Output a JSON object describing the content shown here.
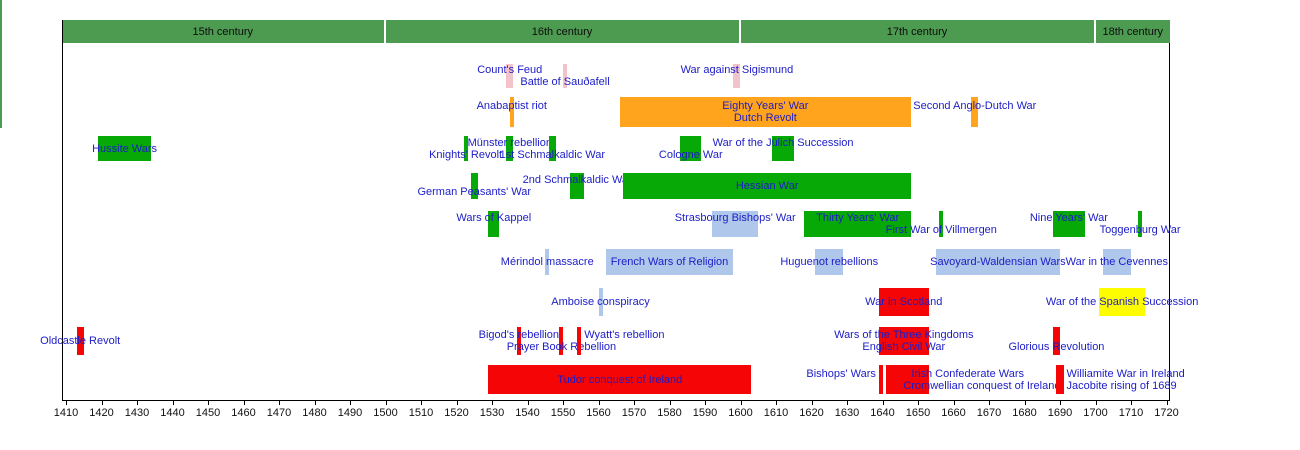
{
  "chart_data": {
    "type": "bar",
    "variant": "horizontal-interval-timeline",
    "x_axis": {
      "min": 1410,
      "max": 1720,
      "tick_step": 10,
      "ticks": [
        "1410",
        "1420",
        "1430",
        "1440",
        "1450",
        "1460",
        "1470",
        "1480",
        "1490",
        "1500",
        "1510",
        "1520",
        "1530",
        "1540",
        "1550",
        "1560",
        "1570",
        "1580",
        "1590",
        "1600",
        "1610",
        "1620",
        "1630",
        "1640",
        "1650",
        "1660",
        "1670",
        "1680",
        "1690",
        "1700",
        "1710",
        "1720"
      ]
    },
    "centuries": [
      {
        "label": "15th century",
        "start": 1410,
        "end": 1500
      },
      {
        "label": "16th century",
        "start": 1500,
        "end": 1600
      },
      {
        "label": "17th century",
        "start": 1600,
        "end": 1700
      },
      {
        "label": "18th century",
        "start": 1700,
        "end": 1720
      }
    ],
    "colors": {
      "green": "#07a907",
      "orange": "#ffa41c",
      "red": "#f50505",
      "lightblue": "#aec7ea",
      "pink": "#f2c3cb",
      "yellow": "#fdfd00",
      "header_green": "#4d9a51",
      "label_text": "#1c1cc8",
      "axis_text": "#111111",
      "frame": "#000000",
      "background": "#ffffff"
    },
    "rows": [
      {
        "events": [
          {
            "name": "Count's Feud",
            "start": 1534,
            "end": 1536,
            "color": "pink",
            "line": 1,
            "mode": "center"
          },
          {
            "name": "Battle of Sauðafell",
            "start": 1550,
            "end": 1551,
            "color": "pink",
            "line": 2,
            "mode": "center"
          },
          {
            "name": "War against Sigismund",
            "start": 1598,
            "end": 1600,
            "color": "pink",
            "line": 1,
            "mode": "center"
          }
        ]
      },
      {
        "events": [
          {
            "name": "Anabaptist riot",
            "start": 1535,
            "end": 1536,
            "color": "orange",
            "line": 1,
            "mode": "center"
          },
          {
            "name": "Eighty Years' War",
            "label2": {
              "text": "Dutch Revolt"
            },
            "start": 1566,
            "end": 1648,
            "color": "orange",
            "line": 1,
            "mode": "center"
          },
          {
            "name": "Second Anglo-Dutch War",
            "start": 1665,
            "end": 1667,
            "color": "orange",
            "line": 1,
            "mode": "center"
          }
        ]
      },
      {
        "events": [
          {
            "name": "Hussite Wars",
            "start": 1419,
            "end": 1434,
            "color": "green",
            "line": 0,
            "mode": "center"
          },
          {
            "name": "Knights' Revolt",
            "start": 1522,
            "end": 1523,
            "color": "green",
            "line": 2,
            "mode": "center"
          },
          {
            "name": "Münster rebellion",
            "start": 1534,
            "end": 1536,
            "color": "green",
            "line": 1,
            "mode": "center"
          },
          {
            "name": "1st Schmalkaldic War",
            "start": 1546,
            "end": 1548,
            "color": "green",
            "line": 2,
            "mode": "center"
          },
          {
            "name": "Cologne War",
            "start": 1583,
            "end": 1589,
            "color": "green",
            "line": 2,
            "mode": "center"
          },
          {
            "name": "War of the Jülich Succession",
            "start": 1609,
            "end": 1615,
            "color": "green",
            "line": 1,
            "mode": "center"
          }
        ]
      },
      {
        "events": [
          {
            "name": "German Peasants' War",
            "start": 1524,
            "end": 1526,
            "color": "green",
            "line": 2,
            "mode": "center"
          },
          {
            "name": "2nd Schmalkaldic War",
            "start": 1552,
            "end": 1556,
            "color": "green",
            "line": 1,
            "mode": "center"
          },
          {
            "name": "Hessian War",
            "start": 1567,
            "end": 1648,
            "color": "green",
            "line": 0,
            "mode": "center"
          }
        ]
      },
      {
        "events": [
          {
            "name": "Wars of Kappel",
            "start": 1529,
            "end": 1532,
            "color": "green",
            "line": 1,
            "mode": "center"
          },
          {
            "name": "Strasbourg Bishops' War",
            "start": 1592,
            "end": 1605,
            "color": "lightblue",
            "line": 1,
            "mode": "center"
          },
          {
            "name": "Thirty Years' War",
            "start": 1618,
            "end": 1648,
            "color": "green",
            "line": 1,
            "mode": "center"
          },
          {
            "name": "First War of Villmergen",
            "start": 1656,
            "end": 1657,
            "color": "green",
            "line": 2,
            "mode": "center"
          },
          {
            "name": "Nine Years' War",
            "start": 1688,
            "end": 1697,
            "color": "green",
            "line": 1,
            "mode": "center"
          },
          {
            "name": "Toggenburg War",
            "start": 1712,
            "end": 1713,
            "color": "green",
            "line": 2,
            "mode": "center"
          }
        ]
      },
      {
        "events": [
          {
            "name": "Mérindol massacre",
            "start": 1545,
            "end": 1546,
            "color": "lightblue",
            "line": 0,
            "mode": "center"
          },
          {
            "name": "French Wars of Religion",
            "start": 1562,
            "end": 1598,
            "color": "lightblue",
            "line": 0,
            "mode": "center"
          },
          {
            "name": "Huguenot rebellions",
            "start": 1621,
            "end": 1629,
            "color": "lightblue",
            "line": 0,
            "mode": "center"
          },
          {
            "name": "Savoyard-Waldensian Wars",
            "start": 1655,
            "end": 1690,
            "color": "lightblue",
            "line": 0,
            "mode": "center"
          },
          {
            "name": "War in the Cevennes",
            "start": 1702,
            "end": 1710,
            "color": "lightblue",
            "line": 0,
            "mode": "center"
          }
        ]
      },
      {
        "events": [
          {
            "name": "Amboise conspiracy",
            "start": 1560,
            "end": 1561,
            "color": "lightblue",
            "line": 0,
            "mode": "center"
          },
          {
            "name": "War in Scotland",
            "start": 1639,
            "end": 1653,
            "color": "red",
            "line": 0,
            "mode": "center"
          },
          {
            "name": "War of the Spanish Succession",
            "start": 1701,
            "end": 1714,
            "color": "yellow",
            "line": 0,
            "mode": "center"
          }
        ]
      },
      {
        "events": [
          {
            "name": "Oldcastle Revolt",
            "start": 1413,
            "end": 1415,
            "color": "red",
            "line": 0,
            "mode": "center"
          },
          {
            "name": "Bigod's rebellion",
            "start": 1537,
            "end": 1538,
            "color": "red",
            "line": 1,
            "mode": "center"
          },
          {
            "name": "Prayer Book Rebellion",
            "start": 1549,
            "end": 1550,
            "color": "red",
            "line": 2,
            "mode": "center"
          },
          {
            "name": "Wyatt's rebellion",
            "start": 1554,
            "end": 1555,
            "color": "red",
            "line": 1,
            "mode": "right"
          },
          {
            "name": "Wars of the Three Kingdoms",
            "label2": {
              "text": "English Civil War"
            },
            "start": 1639,
            "end": 1653,
            "color": "red",
            "line": 1,
            "mode": "center"
          },
          {
            "name": "Glorious Revolution",
            "start": 1688,
            "end": 1690,
            "color": "red",
            "line": 2,
            "mode": "center"
          }
        ]
      },
      {
        "events": [
          {
            "name": "Tudor conquest of Ireland",
            "start": 1529,
            "end": 1603,
            "color": "red",
            "line": 0,
            "mode": "center"
          },
          {
            "name": "Bishops' Wars",
            "start": 1639,
            "end": 1640,
            "color": "red",
            "line": 1,
            "mode": "left"
          },
          {
            "name": "Irish Confederate Wars",
            "label2": {
              "text": "Cromwellian conquest of Ireland",
              "anchor": 1668
            },
            "start": 1641,
            "end": 1653,
            "color": "red",
            "line": 1,
            "mode": "center",
            "anchor": 1664
          },
          {
            "name": "Williamite War in Ireland",
            "label2": {
              "text": "Jacobite rising of 1689"
            },
            "start": 1689,
            "end": 1691,
            "color": "red",
            "line": 1,
            "mode": "right"
          }
        ]
      }
    ]
  }
}
